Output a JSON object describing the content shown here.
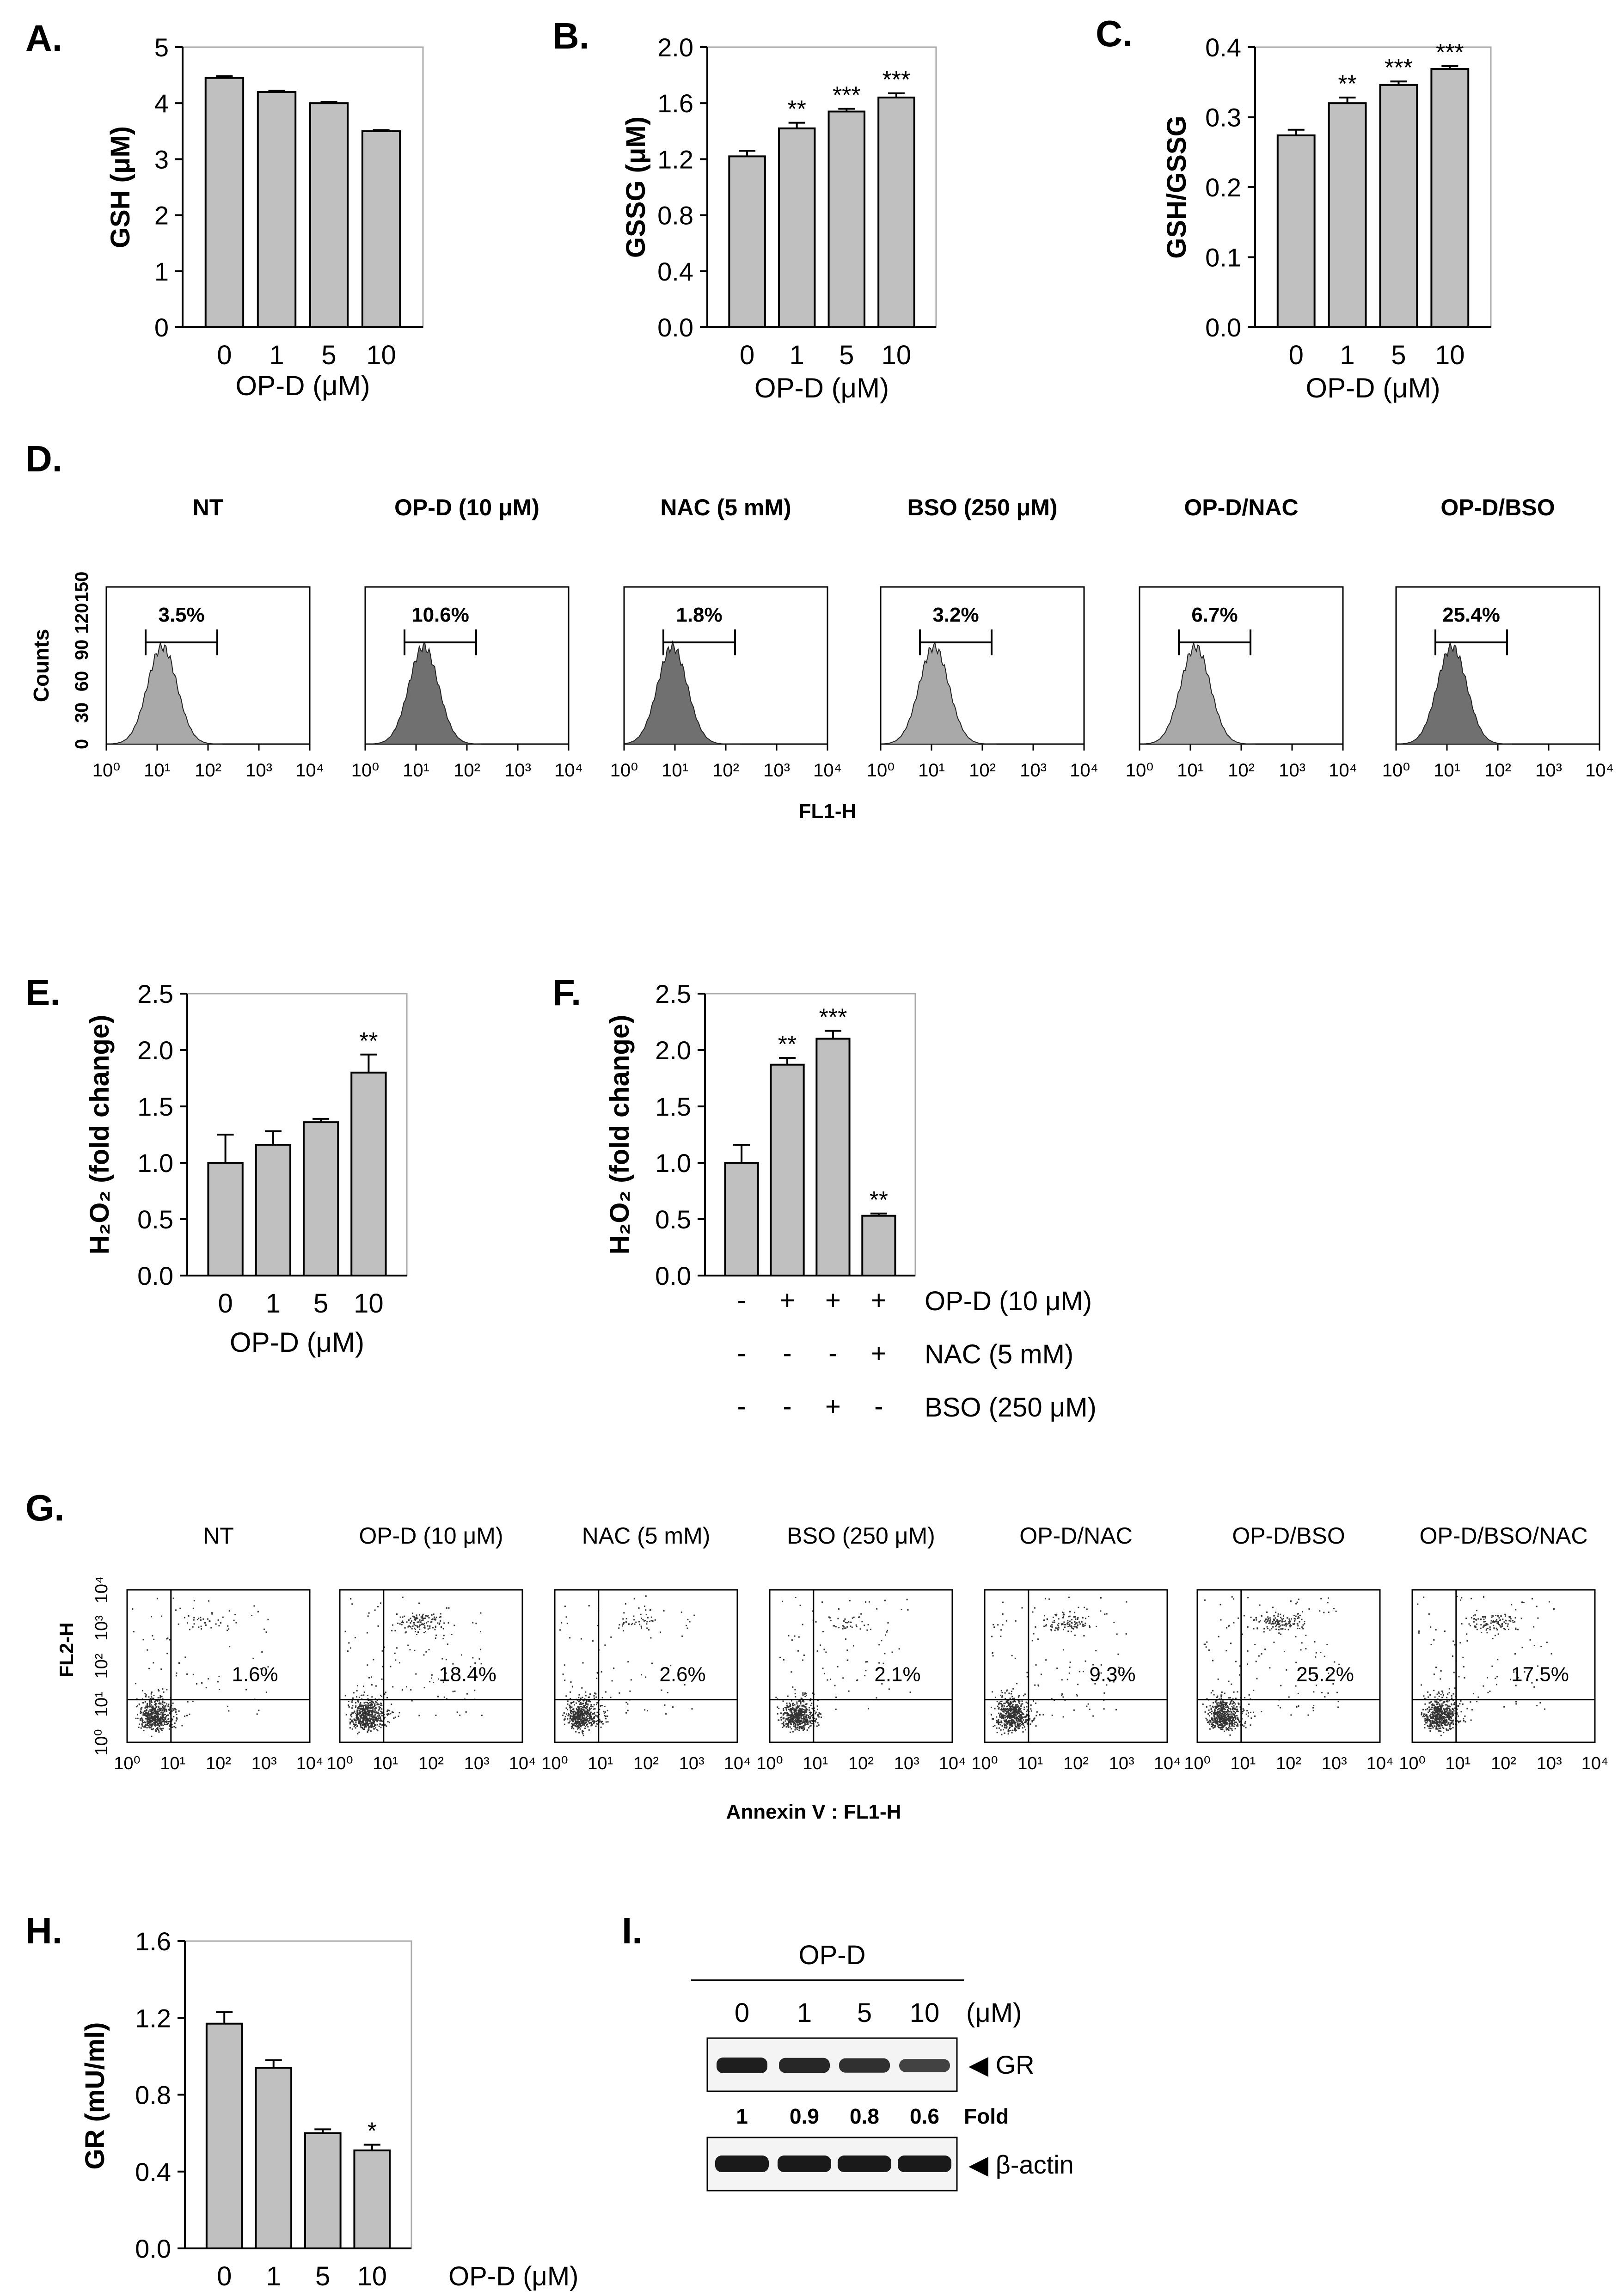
{
  "colors": {
    "bar": "#c0c0c0",
    "edge": "#000000",
    "hist_light": "#a9a9a9",
    "hist_dark": "#707070",
    "dots": "#333333"
  },
  "panels": {
    "A": {
      "label": "A."
    },
    "B": {
      "label": "B."
    },
    "C": {
      "label": "C."
    },
    "D": {
      "label": "D.",
      "ylabel": "Counts",
      "xlabel": "FL1-H",
      "yticks": [
        "0",
        "30",
        "60",
        "90",
        "120",
        "150"
      ],
      "xticks": [
        "10⁰",
        "10¹",
        "10²",
        "10³",
        "10⁴"
      ],
      "plots": [
        {
          "title": "NT",
          "pct": "3.5%",
          "peak": 1.1,
          "shade": "light"
        },
        {
          "title": "OP-D (10 μM)",
          "pct": "10.6%",
          "peak": 1.15,
          "shade": "dark"
        },
        {
          "title": "NAC (5 mM)",
          "pct": "1.8%",
          "peak": 0.95,
          "shade": "dark"
        },
        {
          "title": "BSO (250 μM)",
          "pct": "3.2%",
          "peak": 1.05,
          "shade": "light"
        },
        {
          "title": "OP-D/NAC",
          "pct": "6.7%",
          "peak": 1.1,
          "shade": "light"
        },
        {
          "title": "OP-D/BSO",
          "pct": "25.4%",
          "peak": 1.1,
          "shade": "dark"
        }
      ]
    },
    "E": {
      "label": "E."
    },
    "F": {
      "label": "F.",
      "rows": [
        {
          "name": "OP-D (10 μM)",
          "signs": [
            "-",
            "+",
            "+",
            "+"
          ]
        },
        {
          "name": "NAC (5 mM)",
          "signs": [
            "-",
            "-",
            "-",
            "+"
          ]
        },
        {
          "name": "BSO (250 μM)",
          "signs": [
            "-",
            "-",
            "+",
            "-"
          ]
        }
      ]
    },
    "G": {
      "label": "G.",
      "ylabel": "FL2-H",
      "xlabel": "Annexin V : FL1-H",
      "ticks": [
        "10⁰",
        "10¹",
        "10²",
        "10³",
        "10⁴"
      ],
      "plots": [
        {
          "title": "NT",
          "pct": "1.6%",
          "upper": 0.08
        },
        {
          "title": "OP-D (10 μM)",
          "pct": "18.4%",
          "upper": 0.35
        },
        {
          "title": "NAC (5 mM)",
          "pct": "2.6%",
          "upper": 0.12
        },
        {
          "title": "BSO (250 μM)",
          "pct": "2.1%",
          "upper": 0.1
        },
        {
          "title": "OP-D/NAC",
          "pct": "9.3%",
          "upper": 0.3
        },
        {
          "title": "OP-D/BSO",
          "pct": "25.2%",
          "upper": 0.4
        },
        {
          "title": "OP-D/BSO/NAC",
          "pct": "17.5%",
          "upper": 0.3
        }
      ]
    },
    "H": {
      "label": "H."
    },
    "I": {
      "label": "I.",
      "group": "OP-D",
      "unit": "(μM)",
      "lanes": [
        "0",
        "1",
        "5",
        "10"
      ],
      "gr_label": "◀ GR",
      "actin_label": "◀ β-actin",
      "fold_values": [
        "1",
        "0.9",
        "0.8",
        "0.6"
      ],
      "fold_label": "Fold",
      "gr_intensity": [
        1,
        0.9,
        0.8,
        0.6
      ]
    }
  },
  "chart_data": [
    {
      "panel": "A",
      "type": "bar",
      "categories": [
        "0",
        "1",
        "5",
        "10"
      ],
      "values": [
        4.45,
        4.2,
        4.0,
        3.5
      ],
      "errors": [
        0.03,
        0.02,
        0.02,
        0.02
      ],
      "ylabel": "GSH (μM)",
      "xlabel": "OP-D (μM)",
      "ylim": [
        0,
        5
      ],
      "yticks": [
        "0",
        "1",
        "2",
        "3",
        "4",
        "5"
      ],
      "sig": [
        "",
        "",
        "",
        ""
      ]
    },
    {
      "panel": "B",
      "type": "bar",
      "categories": [
        "0",
        "1",
        "5",
        "10"
      ],
      "values": [
        1.22,
        1.42,
        1.54,
        1.64
      ],
      "errors": [
        0.04,
        0.04,
        0.02,
        0.03
      ],
      "ylabel": "GSSG (μM)",
      "xlabel": "OP-D (μM)",
      "ylim": [
        0,
        2.0
      ],
      "yticks": [
        "0.0",
        "0.4",
        "0.8",
        "1.2",
        "1.6",
        "2.0"
      ],
      "sig": [
        "",
        "**",
        "***",
        "***"
      ]
    },
    {
      "panel": "C",
      "type": "bar",
      "categories": [
        "0",
        "1",
        "5",
        "10"
      ],
      "values": [
        0.274,
        0.32,
        0.346,
        0.369
      ],
      "errors": [
        0.008,
        0.008,
        0.005,
        0.004
      ],
      "ylabel": "GSH/GSSG",
      "xlabel": "OP-D (μM)",
      "ylim": [
        0,
        0.4
      ],
      "yticks": [
        "0.0",
        "0.1",
        "0.2",
        "0.3",
        "0.4"
      ],
      "sig": [
        "",
        "**",
        "***",
        "***"
      ]
    },
    {
      "panel": "E",
      "type": "bar",
      "categories": [
        "0",
        "1",
        "5",
        "10"
      ],
      "values": [
        1.0,
        1.16,
        1.36,
        1.8
      ],
      "errors": [
        0.25,
        0.12,
        0.03,
        0.16
      ],
      "ylabel": "H₂O₂ (fold change)",
      "xlabel": "OP-D (μM)",
      "ylim": [
        0,
        2.5
      ],
      "yticks": [
        "0.0",
        "0.5",
        "1.0",
        "1.5",
        "2.0",
        "2.5"
      ],
      "sig": [
        "",
        "",
        "",
        "**"
      ]
    },
    {
      "panel": "F",
      "type": "bar",
      "categories": [
        "1",
        "2",
        "3",
        "4"
      ],
      "values": [
        1.0,
        1.87,
        2.1,
        0.53
      ],
      "errors": [
        0.16,
        0.06,
        0.07,
        0.02
      ],
      "ylabel": "H₂O₂ (fold change)",
      "xlabel": "",
      "ylim": [
        0,
        2.5
      ],
      "yticks": [
        "0.0",
        "0.5",
        "1.0",
        "1.5",
        "2.0",
        "2.5"
      ],
      "sig": [
        "",
        "**",
        "***",
        "**"
      ]
    },
    {
      "panel": "H",
      "type": "bar",
      "categories": [
        "0",
        "1",
        "5",
        "10"
      ],
      "values": [
        1.17,
        0.94,
        0.6,
        0.51
      ],
      "errors": [
        0.06,
        0.04,
        0.02,
        0.03
      ],
      "ylabel": "GR (mU/ml)",
      "xlabel": "OP-D (μM)",
      "ylim": [
        0,
        1.6
      ],
      "yticks": [
        "0.0",
        "0.4",
        "0.8",
        "1.2",
        "1.6"
      ],
      "sig": [
        "",
        "",
        "",
        "*"
      ]
    }
  ]
}
